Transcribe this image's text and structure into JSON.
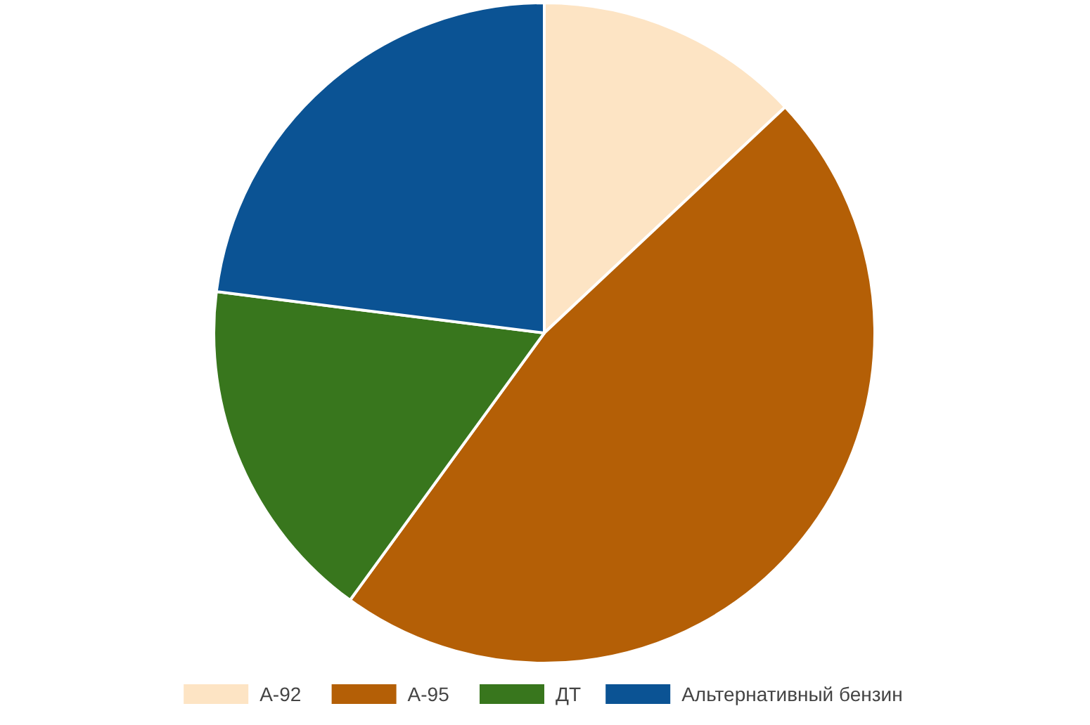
{
  "chart_data": {
    "type": "pie",
    "categories": [
      "А-92",
      "А-95",
      "ДТ",
      "Альтернативный бензин"
    ],
    "values": [
      13,
      47,
      17,
      23
    ],
    "colors": [
      "#fde4c4",
      "#b45f06",
      "#38761d",
      "#0b5394"
    ],
    "legend": "bottom"
  }
}
